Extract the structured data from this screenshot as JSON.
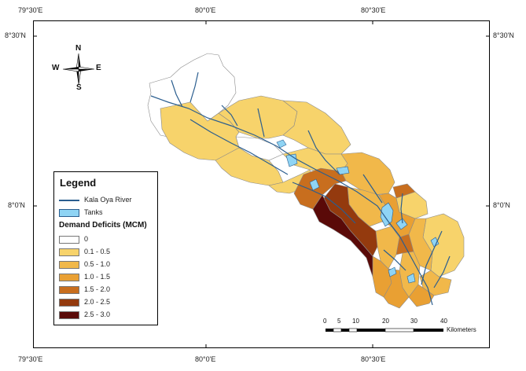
{
  "map": {
    "lon_labels_top": [
      "79°30'E",
      "80°0'E",
      "80°30'E"
    ],
    "lon_labels_bottom": [
      "79°30'E",
      "80°0'E",
      "80°30'E"
    ],
    "lat_labels_left": [
      "8°30'N",
      "8°0'N"
    ],
    "lat_labels_right": [
      "8°30'N",
      "8°0'N"
    ]
  },
  "compass": {
    "n": "N",
    "s": "S",
    "e": "E",
    "w": "W"
  },
  "legend": {
    "title": "Legend",
    "river_label": "Kala Oya River",
    "tanks_label": "Tanks",
    "deficit_title": "Demand Deficits (MCM)",
    "classes": [
      {
        "label": "0",
        "color": "#ffffff"
      },
      {
        "label": "0.1 - 0.5",
        "color": "#f7d36b"
      },
      {
        "label": "0.5 - 1.0",
        "color": "#f1b84a"
      },
      {
        "label": "1.0 - 1.5",
        "color": "#e9a033"
      },
      {
        "label": "1.5 - 2.0",
        "color": "#c86e1e"
      },
      {
        "label": "2.0 - 2.5",
        "color": "#943a0e"
      },
      {
        "label": "2.5 - 3.0",
        "color": "#5a0a08"
      }
    ]
  },
  "scalebar": {
    "ticks": [
      "0",
      "5",
      "10",
      "20",
      "30",
      "40"
    ],
    "unit": "Kilometers"
  },
  "colors": {
    "river": "#2b5e8f",
    "tank": "#8fd4f4"
  }
}
